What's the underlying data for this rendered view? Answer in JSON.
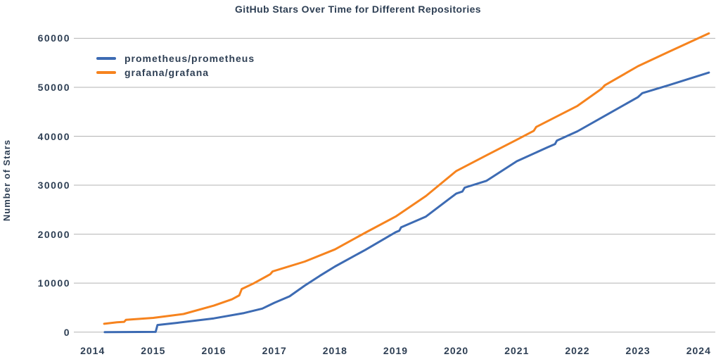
{
  "chart_data": {
    "type": "line",
    "title": "GitHub Stars Over Time for Different Repositories",
    "xlabel": "",
    "ylabel": "Number of Stars",
    "x_ticks": [
      2014,
      2015,
      2016,
      2017,
      2018,
      2019,
      2020,
      2021,
      2022,
      2023,
      2024
    ],
    "y_ticks": [
      0,
      10000,
      20000,
      30000,
      40000,
      50000,
      60000
    ],
    "y_tick_labels": [
      "0",
      "10000",
      "20000",
      "30000",
      "40000",
      "50000",
      "60000"
    ],
    "xlim": [
      2013.69,
      2024.29
    ],
    "ylim": [
      0,
      60000
    ],
    "grid": "horizontal-only",
    "legend_position": "top-left-inside",
    "grid_color": "#B3B3B3",
    "text_color": "#2E3F54",
    "background_color": "#FFFFFF",
    "series": [
      {
        "name": "prometheus/prometheus",
        "color": "#3D6BB3",
        "points": [
          [
            2014.2,
            0
          ],
          [
            2015.04,
            50
          ],
          [
            2015.07,
            1450
          ],
          [
            2015.4,
            1900
          ],
          [
            2016.0,
            2800
          ],
          [
            2016.5,
            3900
          ],
          [
            2016.8,
            4800
          ],
          [
            2017.0,
            6000
          ],
          [
            2017.25,
            7300
          ],
          [
            2017.5,
            9500
          ],
          [
            2017.75,
            11500
          ],
          [
            2018.0,
            13400
          ],
          [
            2018.5,
            16800
          ],
          [
            2019.0,
            20400
          ],
          [
            2019.06,
            20700
          ],
          [
            2019.09,
            21400
          ],
          [
            2019.5,
            23600
          ],
          [
            2020.0,
            28300
          ],
          [
            2020.1,
            28700
          ],
          [
            2020.14,
            29500
          ],
          [
            2020.5,
            30900
          ],
          [
            2021.0,
            34900
          ],
          [
            2021.5,
            37700
          ],
          [
            2021.63,
            38400
          ],
          [
            2021.66,
            39100
          ],
          [
            2022.0,
            41000
          ],
          [
            2022.5,
            44500
          ],
          [
            2023.0,
            48000
          ],
          [
            2023.07,
            48800
          ],
          [
            2023.5,
            50400
          ],
          [
            2024.17,
            53000
          ]
        ]
      },
      {
        "name": "grafana/grafana",
        "color": "#F6831E",
        "points": [
          [
            2014.19,
            1700
          ],
          [
            2014.4,
            2000
          ],
          [
            2014.52,
            2100
          ],
          [
            2014.55,
            2500
          ],
          [
            2015.0,
            2900
          ],
          [
            2015.5,
            3700
          ],
          [
            2016.0,
            5400
          ],
          [
            2016.3,
            6700
          ],
          [
            2016.42,
            7500
          ],
          [
            2016.46,
            8800
          ],
          [
            2016.65,
            9900
          ],
          [
            2016.93,
            11800
          ],
          [
            2016.97,
            12400
          ],
          [
            2017.5,
            14400
          ],
          [
            2018.0,
            16900
          ],
          [
            2018.5,
            20300
          ],
          [
            2019.0,
            23600
          ],
          [
            2019.5,
            27800
          ],
          [
            2020.0,
            32900
          ],
          [
            2020.5,
            36100
          ],
          [
            2021.0,
            39300
          ],
          [
            2021.28,
            41100
          ],
          [
            2021.32,
            41900
          ],
          [
            2022.0,
            46200
          ],
          [
            2022.4,
            49700
          ],
          [
            2022.45,
            50400
          ],
          [
            2023.0,
            54300
          ],
          [
            2023.5,
            57200
          ],
          [
            2024.17,
            61000
          ]
        ]
      }
    ]
  }
}
